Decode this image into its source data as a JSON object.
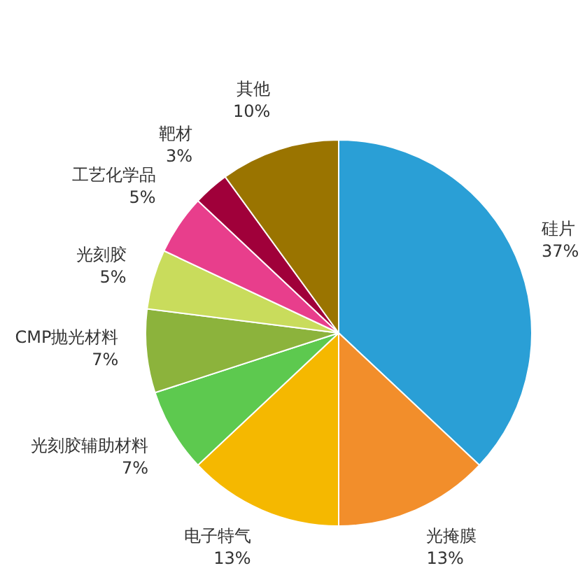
{
  "chart_data": {
    "type": "pie",
    "categories": [
      "硅片",
      "光掩膜",
      "电子特气",
      "光刻胶辅助材料",
      "CMP抛光材料",
      "光刻胶",
      "工艺化学品",
      "靶材",
      "其他"
    ],
    "values": [
      37,
      13,
      13,
      7,
      7,
      5,
      5,
      3,
      10
    ],
    "value_labels": [
      "37%",
      "13%",
      "13%",
      "7%",
      "7%",
      "5%",
      "5%",
      "3%",
      "10%"
    ],
    "colors": [
      "#2a9fd6",
      "#f28e2b",
      "#f5b800",
      "#5dc94f",
      "#8cb33c",
      "#c9dc5c",
      "#e83e8c",
      "#a0003a",
      "#9a7400"
    ]
  }
}
